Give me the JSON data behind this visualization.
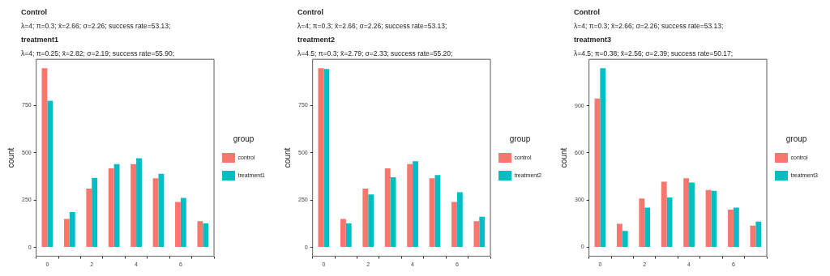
{
  "chart_data": [
    {
      "type": "bar",
      "title": "Control",
      "subtitle": "λ=4; π=0.3; x̄=2.66; σ=2.26; success rate=53.13;",
      "annotations": [
        "treatment1",
        "λ=4; π=0.25; x̄=2.82; σ=2.19; success rate=55.90;"
      ],
      "ylabel": "count",
      "legend_title": "group",
      "legend": "right",
      "grid": false,
      "categories": [
        "0",
        null,
        "2",
        null,
        "4",
        null,
        "6",
        null
      ],
      "ylim": [
        -47,
        993
      ],
      "yticks": [
        0,
        250,
        500,
        750
      ],
      "series": [
        {
          "name": "control",
          "color": "#f8766d",
          "values": [
            946,
            150,
            310,
            417,
            439,
            365,
            240,
            138
          ]
        },
        {
          "name": "treatment1",
          "color": "#00bfc4",
          "values": [
            774,
            186,
            367,
            439,
            470,
            388,
            261,
            127
          ]
        }
      ]
    },
    {
      "type": "bar",
      "title": "Control",
      "subtitle": "λ=4; π=0.3; x̄=2.66; σ=2.26; success rate=53.13;",
      "annotations": [
        "treatment2",
        "λ=4.5; π=0.3; x̄=2.79; σ=2.33; success rate=55.20;"
      ],
      "ylabel": "count",
      "legend_title": "group",
      "legend": "right",
      "grid": false,
      "categories": [
        "0",
        null,
        "2",
        null,
        "4",
        null,
        "6",
        null
      ],
      "ylim": [
        -47,
        993
      ],
      "yticks": [
        0,
        250,
        500,
        750
      ],
      "series": [
        {
          "name": "control",
          "color": "#f8766d",
          "values": [
            946,
            150,
            310,
            417,
            439,
            365,
            240,
            138
          ]
        },
        {
          "name": "treatment2",
          "color": "#00bfc4",
          "values": [
            942,
            126,
            279,
            370,
            454,
            382,
            291,
            162
          ]
        }
      ]
    },
    {
      "type": "bar",
      "title": "Control",
      "subtitle": "λ=4; π=0.3; x̄=2.66; σ=2.26; success rate=53.13;",
      "annotations": [
        "treatment3",
        "λ=4.5; π=0.38; x̄=2.56; σ=2.39; success rate=50.17;"
      ],
      "ylabel": "count",
      "legend_title": "group",
      "legend": "right",
      "grid": false,
      "categories": [
        "0",
        null,
        "2",
        null,
        "4",
        null,
        "6",
        null
      ],
      "ylim": [
        -57,
        1196
      ],
      "yticks": [
        0,
        300,
        600,
        900
      ],
      "series": [
        {
          "name": "control",
          "color": "#f8766d",
          "values": [
            946,
            150,
            310,
            417,
            439,
            365,
            240,
            138
          ]
        },
        {
          "name": "treatment3",
          "color": "#00bfc4",
          "values": [
            1139,
            105,
            253,
            317,
            412,
            359,
            253,
            164
          ]
        }
      ]
    }
  ]
}
